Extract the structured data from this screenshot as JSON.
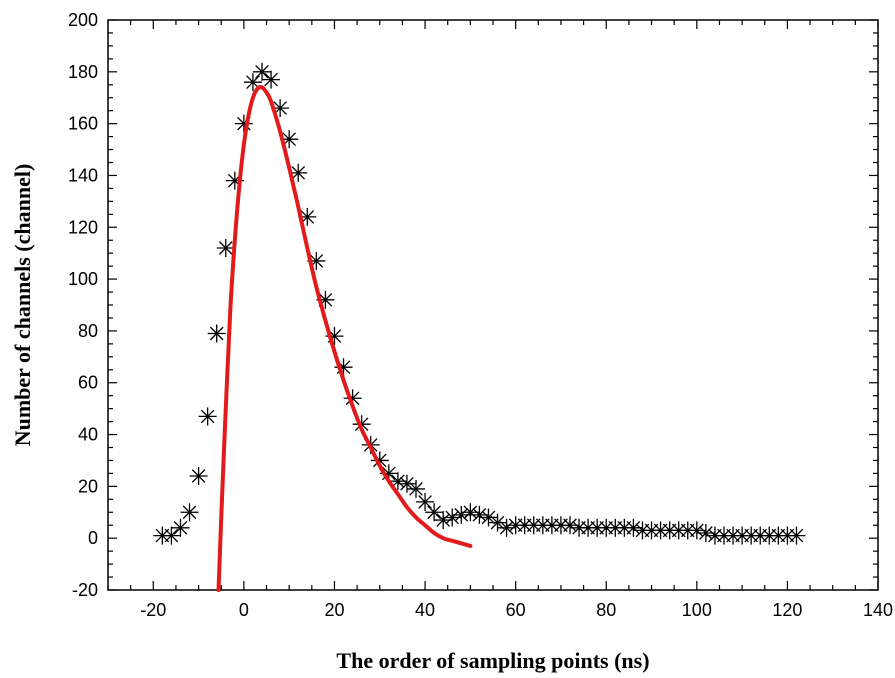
{
  "chart_data": {
    "type": "scatter",
    "title": "",
    "xlabel": "The order of sampling points (ns)",
    "ylabel": "Number of channels (channel)",
    "xlim": [
      -30,
      140
    ],
    "ylim": [
      -20,
      200
    ],
    "x_ticks": [
      -20,
      0,
      20,
      40,
      60,
      80,
      100,
      120,
      140
    ],
    "y_ticks": [
      -20,
      0,
      20,
      40,
      60,
      80,
      100,
      120,
      140,
      160,
      180,
      200
    ],
    "grid": false,
    "legend": "none",
    "series": [
      {
        "kind": "scatter",
        "marker": "asterisk",
        "color": "#000000",
        "x": [
          -18,
          -16,
          -14,
          -12,
          -10,
          -8,
          -6,
          -4,
          -2,
          0,
          2,
          4,
          6,
          8,
          10,
          12,
          14,
          16,
          18,
          20,
          22,
          24,
          26,
          28,
          30,
          32,
          34,
          36,
          38,
          40,
          42,
          44,
          46,
          48,
          50,
          52,
          54,
          56,
          58,
          60,
          62,
          64,
          66,
          68,
          70,
          72,
          74,
          76,
          78,
          80,
          82,
          84,
          86,
          88,
          90,
          92,
          94,
          96,
          98,
          100,
          102,
          104,
          106,
          108,
          110,
          112,
          114,
          116,
          118,
          120,
          122
        ],
        "y": [
          1,
          1,
          4,
          10,
          24,
          47,
          79,
          112,
          138,
          160,
          176,
          180,
          177,
          166,
          154,
          141,
          124,
          107,
          92,
          78,
          66,
          54,
          44,
          36,
          30,
          25,
          22,
          21,
          19,
          14,
          10,
          7,
          8,
          9,
          10,
          9,
          8,
          6,
          4,
          5,
          5,
          5,
          5,
          5,
          5,
          5,
          4,
          4,
          4,
          4,
          4,
          4,
          4,
          3,
          3,
          3,
          3,
          3,
          3,
          3,
          2,
          1,
          1,
          1,
          1,
          1,
          1,
          1,
          1,
          1,
          1
        ]
      },
      {
        "kind": "line",
        "color": "#e31a1c",
        "x": [
          -5.6,
          -5,
          -4,
          -3,
          -2,
          -1,
          0,
          1,
          2,
          3,
          4,
          5,
          6,
          8,
          10,
          12,
          14,
          16,
          18,
          20,
          22,
          24,
          26,
          28,
          30,
          32,
          34,
          36,
          38,
          40,
          42,
          44,
          46,
          48,
          50
        ],
        "y": [
          -20,
          8,
          50,
          88,
          115,
          136,
          152,
          163,
          170,
          173.5,
          174,
          172,
          168.5,
          157,
          143,
          128,
          112,
          97,
          84,
          72,
          61,
          51,
          42,
          35,
          28,
          22,
          17,
          12,
          8,
          5,
          2,
          0,
          -1,
          -2,
          -3
        ]
      }
    ]
  }
}
